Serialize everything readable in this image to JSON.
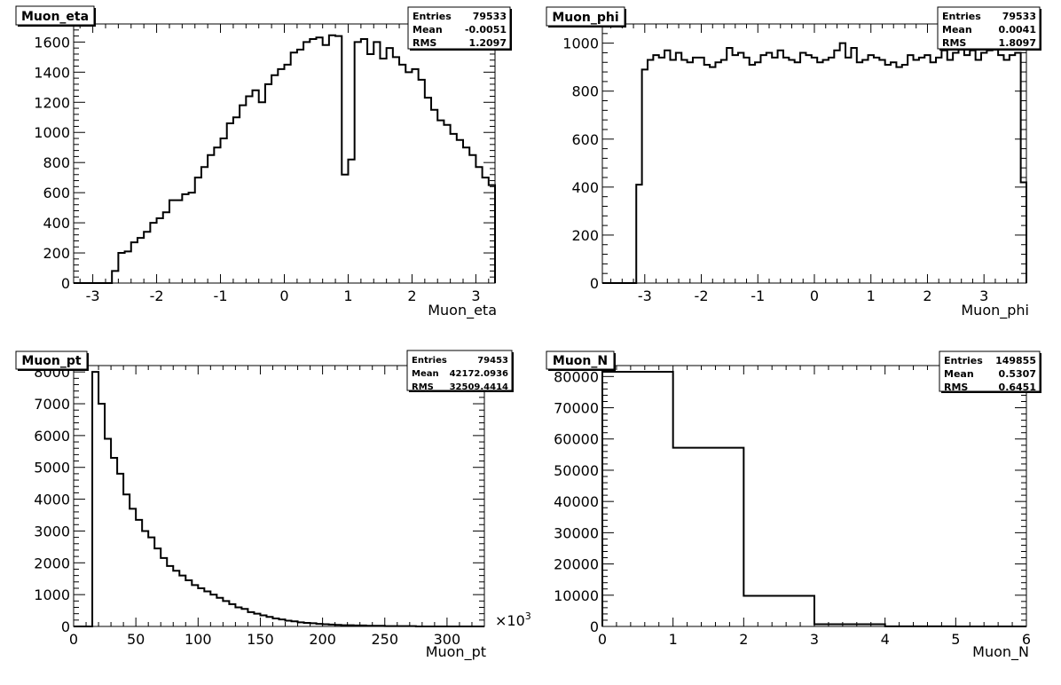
{
  "chart_data": [
    {
      "type": "histogram",
      "title": "Muon_eta",
      "xlabel": "Muon_eta",
      "ylabel": "",
      "xlim": [
        -3.3,
        3.3
      ],
      "ylim": [
        0,
        1720
      ],
      "x_ticks": [
        -3,
        -2,
        -1,
        0,
        1,
        2,
        3
      ],
      "x_tick_labels": [
        "-3",
        "-2",
        "-1",
        "0",
        "1",
        "2",
        "3"
      ],
      "y_ticks": [
        0,
        200,
        400,
        600,
        800,
        1000,
        1200,
        1400,
        1600
      ],
      "y_tick_labels": [
        "0",
        "200",
        "400",
        "600",
        "800",
        "1000",
        "1200",
        "1400",
        "1600"
      ],
      "x_multiplier": "",
      "stats": {
        "entries": "79533",
        "mean": "-0.0051",
        "rms": "1.2097"
      },
      "stats_labels": {
        "entries": "Entries",
        "mean": "Mean",
        "rms": "RMS"
      },
      "bins": {
        "low": -3.3,
        "high": 3.3,
        "n": 66
      },
      "values": [
        0,
        0,
        0,
        0,
        0,
        0,
        80,
        200,
        210,
        270,
        300,
        340,
        400,
        430,
        470,
        550,
        550,
        590,
        600,
        700,
        770,
        850,
        900,
        960,
        1060,
        1100,
        1180,
        1240,
        1280,
        1200,
        1320,
        1380,
        1420,
        1450,
        1530,
        1550,
        1600,
        1620,
        1630,
        1580,
        1645,
        1640,
        720,
        820,
        1600,
        1620,
        1520,
        1600,
        1490,
        1560,
        1500,
        1450,
        1400,
        1420,
        1350,
        1230,
        1150,
        1080,
        1050,
        990,
        950,
        900,
        850,
        770,
        700,
        650
      ]
    },
    {
      "type": "histogram",
      "title": "Muon_phi",
      "xlabel": "Muon_phi",
      "ylabel": "",
      "xlim": [
        -3.75,
        3.75
      ],
      "ylim": [
        0,
        1080
      ],
      "x_ticks": [
        -3,
        -2,
        -1,
        0,
        1,
        2,
        3
      ],
      "x_tick_labels": [
        "-3",
        "-2",
        "-1",
        "0",
        "1",
        "2",
        "3"
      ],
      "y_ticks": [
        0,
        200,
        400,
        600,
        800,
        1000
      ],
      "y_tick_labels": [
        "0",
        "200",
        "400",
        "600",
        "800",
        "1000"
      ],
      "x_multiplier": "",
      "stats": {
        "entries": "79533",
        "mean": "0.0041",
        "rms": "1.8097"
      },
      "stats_labels": {
        "entries": "Entries",
        "mean": "Mean",
        "rms": "RMS"
      },
      "bins": {
        "low": -3.75,
        "high": 3.75,
        "n": 75
      },
      "values": [
        0,
        0,
        0,
        0,
        0,
        0,
        410,
        890,
        930,
        950,
        940,
        970,
        930,
        960,
        930,
        920,
        940,
        940,
        910,
        900,
        920,
        930,
        980,
        950,
        960,
        940,
        910,
        920,
        950,
        960,
        940,
        970,
        940,
        930,
        920,
        960,
        950,
        940,
        920,
        930,
        940,
        970,
        1000,
        940,
        980,
        920,
        930,
        950,
        940,
        930,
        910,
        920,
        900,
        910,
        950,
        930,
        940,
        950,
        920,
        940,
        970,
        930,
        960,
        990,
        950,
        970,
        930,
        960,
        970,
        980,
        950,
        930,
        950,
        960,
        420
      ]
    },
    {
      "type": "histogram",
      "title": "Muon_pt",
      "xlabel": "Muon_pt",
      "ylabel": "",
      "xlim": [
        0,
        330
      ],
      "ylim": [
        0,
        8200
      ],
      "x_ticks": [
        0,
        50,
        100,
        150,
        200,
        250,
        300
      ],
      "x_tick_labels": [
        "0",
        "50",
        "100",
        "150",
        "200",
        "250",
        "300"
      ],
      "y_ticks": [
        0,
        1000,
        2000,
        3000,
        4000,
        5000,
        6000,
        7000,
        8000
      ],
      "y_tick_labels": [
        "0",
        "1000",
        "2000",
        "3000",
        "4000",
        "5000",
        "6000",
        "7000",
        "8000"
      ],
      "x_multiplier": "×10",
      "x_multiplier_exp": "3",
      "stats": {
        "entries": "79453",
        "mean": "42172.0936",
        "rms": "32509.4414"
      },
      "stats_labels": {
        "entries": "Entries",
        "mean": "Mean",
        "rms": "RMS"
      },
      "bins": {
        "low": 0,
        "high": 330,
        "n": 66
      },
      "values": [
        0,
        0,
        0,
        8000,
        7000,
        5900,
        5300,
        4800,
        4150,
        3700,
        3350,
        3000,
        2800,
        2450,
        2150,
        1900,
        1750,
        1600,
        1450,
        1300,
        1200,
        1100,
        1000,
        900,
        800,
        700,
        600,
        550,
        450,
        400,
        350,
        300,
        250,
        220,
        180,
        160,
        130,
        110,
        100,
        80,
        70,
        60,
        50,
        40,
        40,
        30,
        30,
        20,
        20,
        20,
        10,
        10,
        10,
        10,
        10,
        0,
        0,
        0,
        0,
        0,
        0,
        0,
        0,
        0,
        0,
        0
      ]
    },
    {
      "type": "histogram",
      "title": "Muon_N",
      "xlabel": "Muon_N",
      "ylabel": "",
      "xlim": [
        0,
        6
      ],
      "ylim": [
        0,
        83500
      ],
      "x_ticks": [
        0,
        1,
        2,
        3,
        4,
        5,
        6
      ],
      "x_tick_labels": [
        "0",
        "1",
        "2",
        "3",
        "4",
        "5",
        "6"
      ],
      "y_ticks": [
        0,
        10000,
        20000,
        30000,
        40000,
        50000,
        60000,
        70000,
        80000
      ],
      "y_tick_labels": [
        "0",
        "10000",
        "20000",
        "30000",
        "40000",
        "50000",
        "60000",
        "70000",
        "80000"
      ],
      "x_multiplier": "",
      "stats": {
        "entries": "149855",
        "mean": "0.5307",
        "rms": "0.6451"
      },
      "stats_labels": {
        "entries": "Entries",
        "mean": "Mean",
        "rms": "RMS"
      },
      "bins": {
        "low": 0,
        "high": 6,
        "n": 6
      },
      "values": [
        81500,
        57200,
        9800,
        700,
        40,
        0
      ]
    }
  ]
}
